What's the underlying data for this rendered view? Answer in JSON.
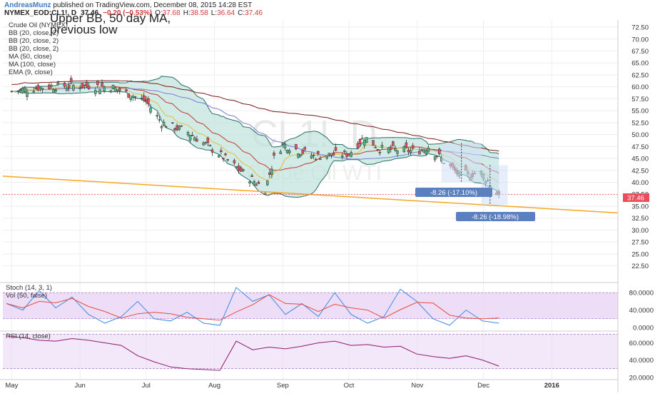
{
  "header": {
    "author": "AndreasMunz",
    "published": " published on TradingView.com, December 08, 2015 14:28 EST",
    "symbol": "NYMEX_EOD:CL1!, D",
    "last": "37.46",
    "change": "−0.20 (−0.53%)",
    "o_label": "O:",
    "o": "37.68",
    "h_label": "H:",
    "h": "38.58",
    "l_label": "L:",
    "l": "36.64",
    "c_label": "C:",
    "c": "37.46"
  },
  "title_overlay": [
    "Upper BB, 50 day MA,",
    "previous low"
  ],
  "watermark": {
    "symbol": "CL1!, D",
    "name": "Crude Oil WTI"
  },
  "indicators": [
    "Crude Oil (NYMEX)",
    "BB (20, close, 2)",
    "BB (20, close, 2)",
    "BB (20, close, 2)",
    "MA (50, close)",
    "MA (100, close)",
    "EMA (9, close)"
  ],
  "annotations": {
    "drop1": "-8.26 (-17.10%)",
    "drop2": "-8.26 (-18.98%)",
    "last_badge": "37.46"
  },
  "stoch_labels": [
    "Stoch (14, 3, 1)",
    "Vol (50, false)"
  ],
  "rsi_label": "RSI (14, close)",
  "colors": {
    "up": "#53b987",
    "down": "#eb4d5c",
    "bb_fill": "#bfe3dc",
    "bb_line": "#2a6e66",
    "ma50": "#7a1a1a",
    "ma100": "#8b3a3a",
    "ema9": "#e0c040",
    "trend": "#f5a623",
    "stoch_k": "#3c8ae8",
    "stoch_d": "#e74c3c",
    "panel_fill": "#e9d4f5",
    "rsi": "#8e1a6e",
    "badge": "#5b7fbf"
  },
  "chart_data": [
    {
      "type": "candlestick",
      "title": "",
      "x_ticks": [
        "May",
        "Jun",
        "Jul",
        "Aug",
        "Sep",
        "Oct",
        "Nov",
        "Dec",
        "2016"
      ],
      "y_ticks": [
        22.5,
        25.0,
        27.5,
        30.0,
        32.5,
        35.0,
        37.5,
        40.0,
        42.5,
        45.0,
        47.5,
        50.0,
        52.5,
        55.0,
        57.5,
        60.0,
        62.5,
        65.0,
        67.5,
        70.0,
        72.5
      ],
      "ylim": [
        20.5,
        74.0
      ],
      "last_price": 37.46,
      "close_points": [
        {
          "date": "2015-05-01",
          "close": 59.0
        },
        {
          "date": "2015-05-15",
          "close": 60.0
        },
        {
          "date": "2015-06-01",
          "close": 60.3
        },
        {
          "date": "2015-06-15",
          "close": 60.0
        },
        {
          "date": "2015-07-01",
          "close": 57.0
        },
        {
          "date": "2015-07-08",
          "close": 52.5
        },
        {
          "date": "2015-07-20",
          "close": 50.5
        },
        {
          "date": "2015-08-03",
          "close": 46.0
        },
        {
          "date": "2015-08-14",
          "close": 42.0
        },
        {
          "date": "2015-08-24",
          "close": 38.5
        },
        {
          "date": "2015-08-28",
          "close": 45.0
        },
        {
          "date": "2015-09-01",
          "close": 48.0
        },
        {
          "date": "2015-09-15",
          "close": 45.5
        },
        {
          "date": "2015-10-01",
          "close": 46.0
        },
        {
          "date": "2015-10-08",
          "close": 49.5
        },
        {
          "date": "2015-10-15",
          "close": 47.0
        },
        {
          "date": "2015-11-01",
          "close": 46.5
        },
        {
          "date": "2015-11-06",
          "close": 47.5
        },
        {
          "date": "2015-11-20",
          "close": 41.5
        },
        {
          "date": "2015-11-30",
          "close": 42.0
        },
        {
          "date": "2015-12-08",
          "close": 37.46
        }
      ],
      "trendline": [
        {
          "date": "2015-04-27",
          "value": 41.3
        },
        {
          "date": "2016-01-31",
          "value": 33.6
        }
      ]
    },
    {
      "type": "line",
      "title": "Stoch (14, 3, 1)",
      "y_ticks": [
        0.0,
        40.0,
        80.0
      ],
      "ylim": [
        -5,
        100
      ],
      "series": [
        {
          "name": "Stoch (14, 3, 1)",
          "values": [
            55,
            40,
            85,
            45,
            70,
            30,
            10,
            25,
            60,
            20,
            15,
            35,
            10,
            5,
            92,
            60,
            75,
            30,
            55,
            25,
            80,
            30,
            10,
            25,
            88,
            60,
            20,
            5,
            40,
            15,
            10
          ]
        }
      ]
    },
    {
      "type": "line",
      "title": "RSI (14, close)",
      "y_ticks": [
        20.0,
        40.0,
        60.0
      ],
      "ylim": [
        19,
        72
      ],
      "series": [
        {
          "name": "RSI (14, close)",
          "values": [
            68,
            66,
            63,
            62,
            65,
            63,
            60,
            57,
            45,
            38,
            32,
            30,
            29,
            28,
            62,
            52,
            55,
            53,
            56,
            60,
            62,
            57,
            58,
            55,
            56,
            47,
            44,
            42,
            45,
            40,
            33
          ]
        }
      ]
    }
  ]
}
